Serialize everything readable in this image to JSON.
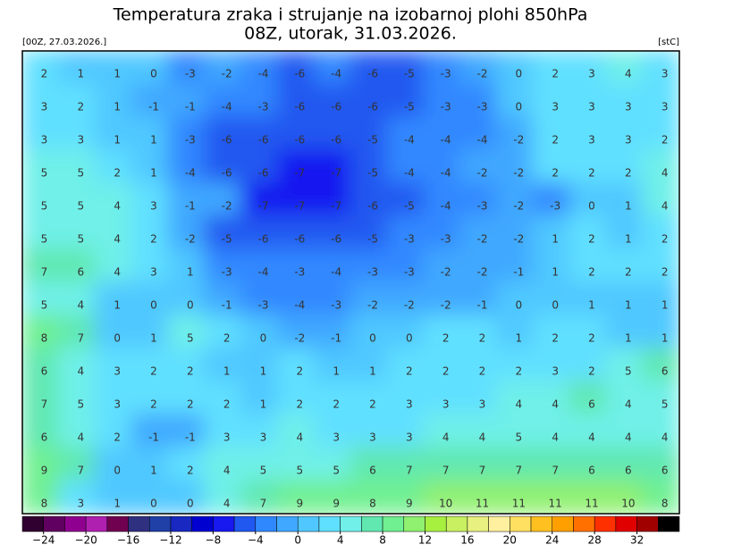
{
  "header": {
    "title": "Temperatura zraka i strujanje na izobarnoj plohi 850hPa",
    "subtitle": "08Z, utorak, 31.03.2026.",
    "run": "[00Z, 27.03.2026.]",
    "unit": "[stC]"
  },
  "map": {
    "values": [
      [
        2,
        1,
        1,
        0,
        -3,
        -2,
        -4,
        -6,
        -4,
        -6,
        -5,
        -3,
        -2,
        0,
        2,
        3,
        4,
        3
      ],
      [
        3,
        2,
        1,
        -1,
        -1,
        -4,
        -3,
        -6,
        -6,
        -6,
        -5,
        -3,
        -3,
        0,
        3,
        3,
        3,
        3
      ],
      [
        3,
        3,
        1,
        1,
        -3,
        -6,
        -6,
        -6,
        -6,
        -5,
        -4,
        -4,
        -4,
        -2,
        2,
        3,
        3,
        2
      ],
      [
        5,
        5,
        2,
        1,
        -4,
        -6,
        -6,
        -7,
        -7,
        -5,
        -4,
        -4,
        -2,
        -2,
        2,
        2,
        2,
        4
      ],
      [
        5,
        5,
        4,
        3,
        -1,
        -2,
        -7,
        -7,
        -7,
        -6,
        -5,
        -4,
        -3,
        -2,
        -3,
        0,
        1,
        4
      ],
      [
        5,
        5,
        4,
        2,
        -2,
        -5,
        -6,
        -6,
        -6,
        -5,
        -3,
        -3,
        -2,
        -2,
        1,
        2,
        1,
        2
      ],
      [
        7,
        6,
        4,
        3,
        1,
        -3,
        -4,
        -3,
        -4,
        -3,
        -3,
        -2,
        -2,
        -1,
        1,
        2,
        2,
        2
      ],
      [
        5,
        4,
        1,
        0,
        0,
        -1,
        -3,
        -4,
        -3,
        -2,
        -2,
        -2,
        -1,
        0,
        0,
        1,
        1,
        1
      ],
      [
        8,
        7,
        0,
        1,
        5,
        2,
        0,
        -2,
        -1,
        0,
        0,
        2,
        2,
        1,
        2,
        2,
        1,
        1
      ],
      [
        6,
        4,
        3,
        2,
        2,
        1,
        1,
        2,
        1,
        1,
        2,
        2,
        2,
        2,
        3,
        2,
        5,
        6
      ],
      [
        7,
        5,
        3,
        2,
        2,
        2,
        1,
        2,
        2,
        2,
        3,
        3,
        3,
        4,
        4,
        6,
        4,
        5
      ],
      [
        6,
        4,
        2,
        -1,
        -1,
        3,
        3,
        4,
        3,
        3,
        3,
        4,
        4,
        5,
        4,
        4,
        4,
        4
      ],
      [
        9,
        7,
        0,
        1,
        2,
        4,
        5,
        5,
        5,
        6,
        7,
        7,
        7,
        7,
        7,
        6,
        6,
        6
      ],
      [
        8,
        3,
        1,
        0,
        0,
        4,
        7,
        9,
        9,
        8,
        9,
        10,
        11,
        11,
        11,
        11,
        10,
        8
      ]
    ]
  },
  "colorbar": {
    "range": [
      -26,
      36
    ],
    "colors": [
      "#300030",
      "#600060",
      "#900090",
      "#b020b0",
      "#700050",
      "#303080",
      "#2040a8",
      "#1828c0",
      "#0000d0",
      "#1818f0",
      "#2058f0",
      "#3088ff",
      "#40a8ff",
      "#50c8ff",
      "#60e0ff",
      "#70f0e8",
      "#60e8b0",
      "#70f090",
      "#90f070",
      "#a8f040",
      "#c8f060",
      "#e8f080",
      "#fff0a0",
      "#ffe060",
      "#ffc020",
      "#ffa000",
      "#ff7000",
      "#ff3000",
      "#e00000",
      "#a00000",
      "#000000"
    ],
    "ticks": [
      {
        "value": -24,
        "label": "−24"
      },
      {
        "value": -20,
        "label": "−20"
      },
      {
        "value": -16,
        "label": "−16"
      },
      {
        "value": -12,
        "label": "−12"
      },
      {
        "value": -8,
        "label": "−8"
      },
      {
        "value": -4,
        "label": "−4"
      },
      0,
      4,
      8,
      12,
      16,
      20,
      24,
      28,
      32
    ]
  }
}
